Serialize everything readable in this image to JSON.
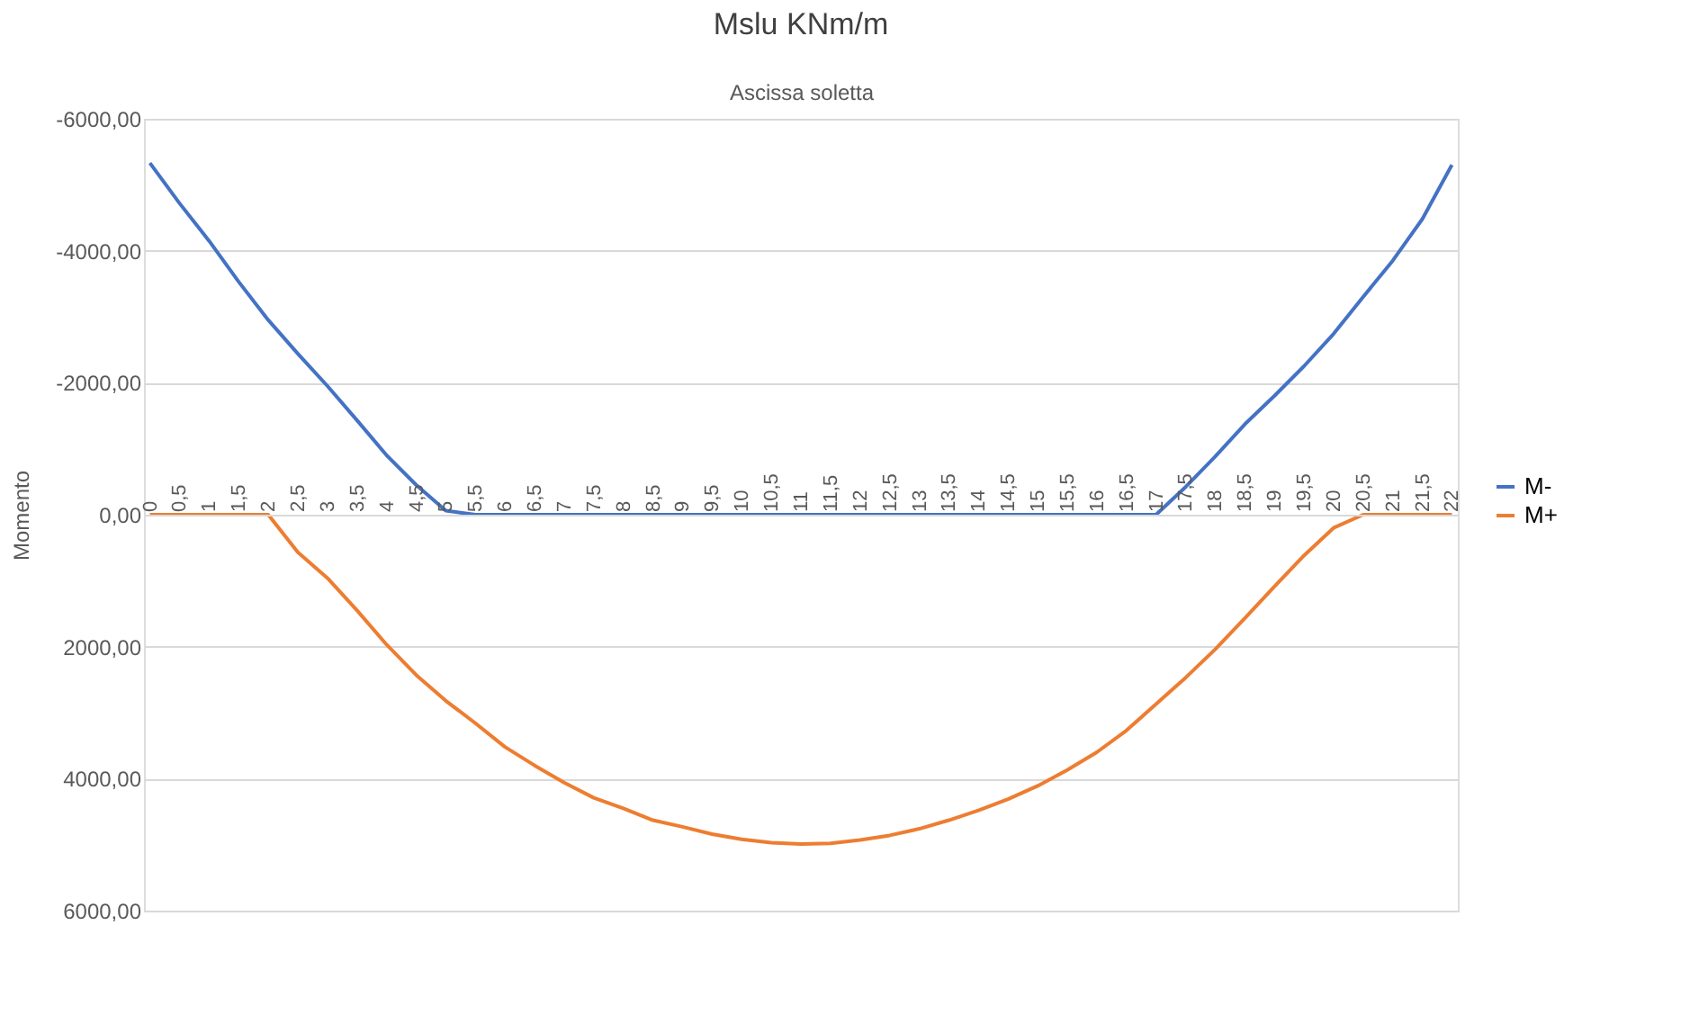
{
  "chart_data": {
    "type": "line",
    "title": "Mslu  KNm/m",
    "xlabel": "Ascissa soletta",
    "ylabel": "Momento",
    "categories": [
      "0",
      "0,5",
      "1",
      "1,5",
      "2",
      "2,5",
      "3",
      "3,5",
      "4",
      "4,5",
      "5",
      "5,5",
      "6",
      "6,5",
      "7",
      "7,5",
      "8",
      "8,5",
      "9",
      "9,5",
      "10",
      "10,5",
      "11",
      "11,5",
      "12",
      "12,5",
      "13",
      "13,5",
      "14",
      "14,5",
      "15",
      "15,5",
      "16",
      "16,5",
      "17",
      "17,5",
      "18",
      "18,5",
      "19",
      "19,5",
      "20",
      "20,5",
      "21",
      "21,5",
      "22"
    ],
    "series": [
      {
        "name": "M-",
        "color": "#4472c4",
        "values": [
          -5330,
          -4720,
          -4150,
          -3530,
          -2950,
          -2440,
          -1950,
          -1430,
          -900,
          -450,
          -60,
          0,
          0,
          0,
          0,
          0,
          0,
          0,
          0,
          0,
          0,
          0,
          0,
          0,
          0,
          0,
          0,
          0,
          0,
          0,
          0,
          0,
          0,
          0,
          0,
          -420,
          -880,
          -1370,
          -1800,
          -2250,
          -2740,
          -3300,
          -3850,
          -4480,
          -5300
        ]
      },
      {
        "name": "M+",
        "color": "#ed7d31",
        "values": [
          0,
          0,
          0,
          0,
          0,
          570,
          960,
          1450,
          1970,
          2430,
          2820,
          3160,
          3520,
          3800,
          4060,
          4290,
          4450,
          4630,
          4730,
          4840,
          4920,
          4970,
          4990,
          4980,
          4930,
          4860,
          4760,
          4630,
          4480,
          4310,
          4110,
          3870,
          3600,
          3270,
          2870,
          2470,
          2040,
          1570,
          1090,
          620,
          200,
          0,
          0,
          0,
          0
        ]
      }
    ],
    "ylim": [
      6000,
      -6000
    ],
    "yticks": [
      {
        "value": -6000,
        "label": "-6000,00"
      },
      {
        "value": -4000,
        "label": "-4000,00"
      },
      {
        "value": -2000,
        "label": "-2000,00"
      },
      {
        "value": 0,
        "label": "0,00"
      },
      {
        "value": 2000,
        "label": "2000,00"
      },
      {
        "value": 4000,
        "label": "4000,00"
      },
      {
        "value": 6000,
        "label": "6000,00"
      }
    ],
    "grid": "y",
    "legend": "right",
    "marker": "none",
    "line_style": "solid"
  }
}
